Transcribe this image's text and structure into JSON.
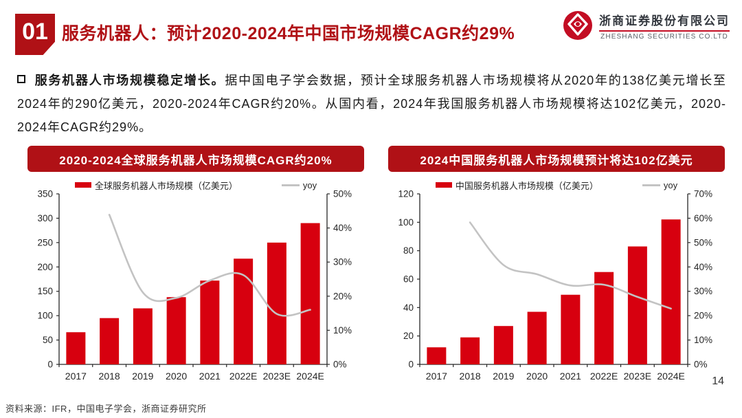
{
  "header": {
    "section_number": "01",
    "title": "服务机器人：预计2020-2024年中国市场规模CAGR约29%",
    "logo": {
      "icon": "zheshang-knot-icon",
      "company_cn": "浙商证券股份有限公司",
      "company_en": "ZHESHANG SECURITIES CO.LTD"
    }
  },
  "body": {
    "bullet_icon": "square-outline-icon",
    "bullet_lead": "服务机器人市场规模稳定增长。",
    "bullet_text": "据中国电子学会数据，预计全球服务机器人市场规模将从2020年的138亿美元增长至2024年的290亿美元，2020-2024年CAGR约20%。从国内看，2024年我国服务机器人市场规模将达102亿美元，2020-2024年CAGR约29%。"
  },
  "colors": {
    "brand_dark_red": "#b01116",
    "bar_red": "#d7000f",
    "line_gray": "#c3c3c3",
    "axis_dark": "#262626",
    "logo_red": "#c30d23"
  },
  "chart_data": [
    {
      "type": "bar",
      "title": "2020-2024全球服务机器人市场规模CAGR约20%",
      "categories": [
        "2017",
        "2018",
        "2019",
        "2020",
        "2021",
        "2022E",
        "2023E",
        "2024E"
      ],
      "series": [
        {
          "name": "全球服务机器人市场规模（亿美元）",
          "kind": "bar",
          "axis": "left",
          "color": "#d7000f",
          "values": [
            66,
            95,
            115,
            138,
            172,
            217,
            250,
            290
          ]
        },
        {
          "name": "yoy",
          "kind": "line",
          "axis": "right",
          "color": "#c3c3c3",
          "values": [
            null,
            43.9,
            21.1,
            19.5,
            24.6,
            26.2,
            14.8,
            16.0
          ]
        }
      ],
      "left_axis": {
        "min": 0,
        "max": 350,
        "step": 50,
        "format": "number"
      },
      "right_axis": {
        "min": 0,
        "max": 50,
        "step": 10,
        "format": "percent"
      },
      "legend_position": "top",
      "grid": false
    },
    {
      "type": "bar",
      "title": "2024中国服务机器人市场规模预计将达102亿美元",
      "categories": [
        "2017",
        "2018",
        "2019",
        "2020",
        "2021",
        "2022E",
        "2023E",
        "2024E"
      ],
      "series": [
        {
          "name": "中国服务机器人市场规模（亿美元）",
          "kind": "bar",
          "axis": "left",
          "color": "#d7000f",
          "values": [
            12,
            19,
            27,
            37,
            49,
            65,
            83,
            102
          ]
        },
        {
          "name": "yoy",
          "kind": "line",
          "axis": "right",
          "color": "#c3c3c3",
          "values": [
            null,
            58.3,
            40.8,
            37.0,
            32.4,
            32.7,
            27.7,
            22.9
          ]
        }
      ],
      "left_axis": {
        "min": 0,
        "max": 120,
        "step": 20,
        "format": "number"
      },
      "right_axis": {
        "min": 0,
        "max": 70,
        "step": 10,
        "format": "percent"
      },
      "legend_position": "top",
      "grid": false
    }
  ],
  "footer": {
    "source": "资料来源：IFR，中国电子学会，浙商证券研究所",
    "page_number": "14"
  }
}
